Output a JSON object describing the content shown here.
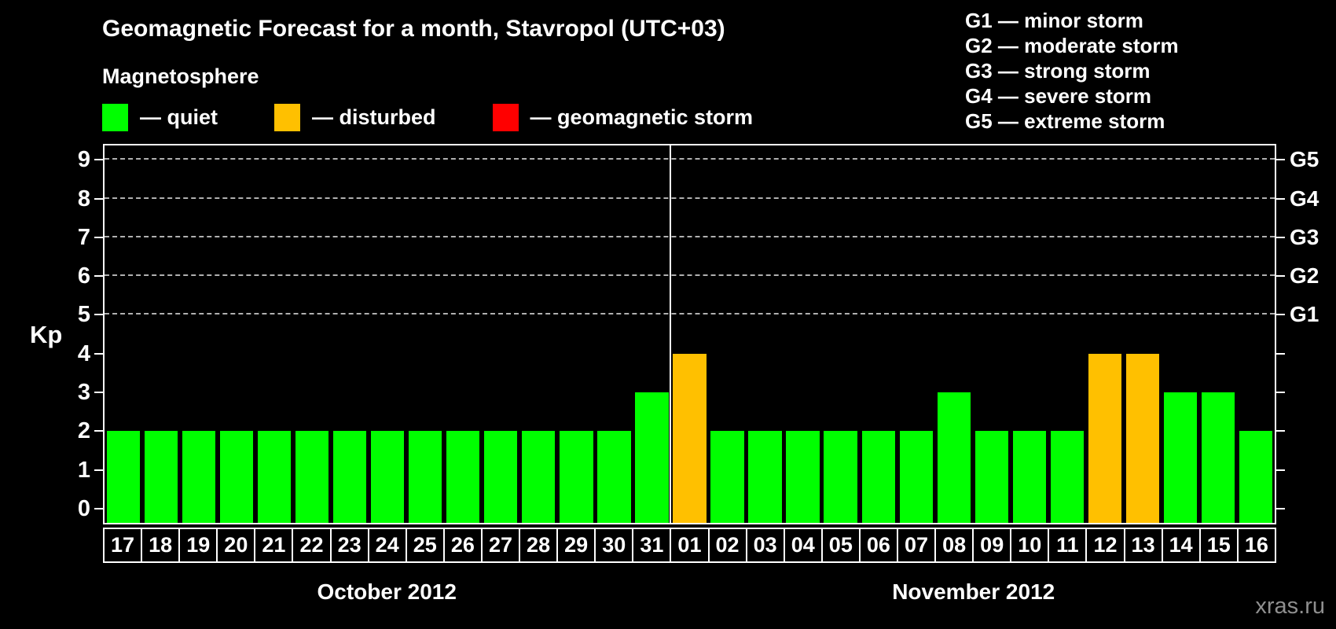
{
  "title": "Geomagnetic Forecast for a month, Stavropol (UTC+03)",
  "magnetosphere": {
    "heading": "Magnetosphere",
    "items": [
      {
        "label": "— quiet",
        "color": "#00ff00",
        "status": "quiet"
      },
      {
        "label": "— disturbed",
        "color": "#ffc000",
        "status": "disturbed"
      },
      {
        "label": "— geomagnetic storm",
        "color": "#ff0000",
        "status": "storm"
      }
    ]
  },
  "storm_scale": [
    {
      "code": "G1",
      "label": "G1 — minor storm"
    },
    {
      "code": "G2",
      "label": "G2 — moderate storm"
    },
    {
      "code": "G3",
      "label": "G3 — strong storm"
    },
    {
      "code": "G4",
      "label": "G4 — severe storm"
    },
    {
      "code": "G5",
      "label": "G5 — extreme storm"
    }
  ],
  "watermark": "xras.ru",
  "chart_data": {
    "type": "bar",
    "title": "Geomagnetic Forecast for a month, Stavropol (UTC+03)",
    "ylabel": "Kp",
    "ylim": [
      0,
      9
    ],
    "yticks": [
      0,
      1,
      2,
      3,
      4,
      5,
      6,
      7,
      8,
      9
    ],
    "gridlines_at": [
      5,
      6,
      7,
      8,
      9
    ],
    "grid": "dashed horizontal at storm levels only",
    "right_axis": [
      {
        "kp": 5,
        "label": "G1"
      },
      {
        "kp": 6,
        "label": "G2"
      },
      {
        "kp": 7,
        "label": "G3"
      },
      {
        "kp": 8,
        "label": "G4"
      },
      {
        "kp": 9,
        "label": "G5"
      }
    ],
    "status_colors": {
      "quiet": "#00ff00",
      "disturbed": "#ffc000",
      "storm": "#ff0000"
    },
    "months": [
      {
        "label": "October 2012",
        "days": [
          "17",
          "18",
          "19",
          "20",
          "21",
          "22",
          "23",
          "24",
          "25",
          "26",
          "27",
          "28",
          "29",
          "30",
          "31"
        ],
        "values": [
          2,
          2,
          2,
          2,
          2,
          2,
          2,
          2,
          2,
          2,
          2,
          2,
          2,
          2,
          3
        ],
        "status": [
          "quiet",
          "quiet",
          "quiet",
          "quiet",
          "quiet",
          "quiet",
          "quiet",
          "quiet",
          "quiet",
          "quiet",
          "quiet",
          "quiet",
          "quiet",
          "quiet",
          "quiet"
        ]
      },
      {
        "label": "November 2012",
        "days": [
          "01",
          "02",
          "03",
          "04",
          "05",
          "06",
          "07",
          "08",
          "09",
          "10",
          "11",
          "12",
          "13",
          "14",
          "15",
          "16"
        ],
        "values": [
          4,
          2,
          2,
          2,
          2,
          2,
          2,
          3,
          2,
          2,
          2,
          4,
          4,
          3,
          3,
          2
        ],
        "status": [
          "disturbed",
          "quiet",
          "quiet",
          "quiet",
          "quiet",
          "quiet",
          "quiet",
          "quiet",
          "quiet",
          "quiet",
          "quiet",
          "disturbed",
          "disturbed",
          "quiet",
          "quiet",
          "quiet"
        ]
      }
    ]
  }
}
